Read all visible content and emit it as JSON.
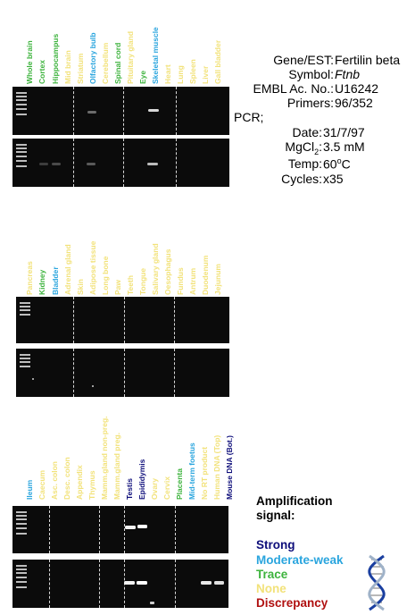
{
  "panels": [
    {
      "labels": [
        {
          "text": "Whole brain",
          "color": "#3db33d"
        },
        {
          "text": "Cortex",
          "color": "#3db33d"
        },
        {
          "text": "Hippocampus",
          "color": "#3db33d"
        },
        {
          "text": "Mid brain",
          "color": "#f2e27a"
        },
        {
          "text": "Striatum",
          "color": "#f2e27a"
        },
        {
          "text": "Olfactory bulb",
          "color": "#2aa5de"
        },
        {
          "text": "Cerebellum",
          "color": "#f2e27a"
        },
        {
          "text": "Spinal cord",
          "color": "#3db33d"
        },
        {
          "text": "Pituitary gland",
          "color": "#f2e27a"
        },
        {
          "text": "Eye",
          "color": "#3db33d"
        },
        {
          "text": "Skeletal muscle",
          "color": "#2aa5de"
        },
        {
          "text": "Heart",
          "color": "#f2e27a"
        },
        {
          "text": "Lung",
          "color": "#f2e27a"
        },
        {
          "text": "Spleen",
          "color": "#f2e27a"
        },
        {
          "text": "Liver",
          "color": "#f2e27a"
        },
        {
          "text": "Gall bladder",
          "color": "#f2e27a"
        }
      ]
    },
    {
      "labels": [
        {
          "text": "Pancreas",
          "color": "#f2e27a"
        },
        {
          "text": "Kidney",
          "color": "#3db33d"
        },
        {
          "text": "Bladder",
          "color": "#2aa5de"
        },
        {
          "text": "Adrenal gland",
          "color": "#f2e27a"
        },
        {
          "text": "Skin",
          "color": "#f2e27a"
        },
        {
          "text": "Adipose tissue",
          "color": "#f2e27a"
        },
        {
          "text": "Long bone",
          "color": "#f2e27a"
        },
        {
          "text": "Paw",
          "color": "#f2e27a"
        },
        {
          "text": "Teeth",
          "color": "#f2e27a"
        },
        {
          "text": "Tongue",
          "color": "#f2e27a"
        },
        {
          "text": "Salivary gland",
          "color": "#f2e27a"
        },
        {
          "text": "Oesophagus",
          "color": "#f2e27a"
        },
        {
          "text": "Fundus",
          "color": "#f2e27a"
        },
        {
          "text": "Antrum",
          "color": "#f2e27a"
        },
        {
          "text": "Duodenum",
          "color": "#f2e27a"
        },
        {
          "text": "Jejunum",
          "color": "#f2e27a"
        }
      ]
    },
    {
      "labels": [
        {
          "text": "Ileum",
          "color": "#2aa5de"
        },
        {
          "text": "Caecum",
          "color": "#f2e27a"
        },
        {
          "text": "Asc. colon",
          "color": "#f2e27a"
        },
        {
          "text": "Desc. colon",
          "color": "#f2e27a"
        },
        {
          "text": "Appendix",
          "color": "#f2e27a"
        },
        {
          "text": "Thymus",
          "color": "#f2e27a"
        },
        {
          "text": "Mamm.gland non-preg.",
          "color": "#f2e27a"
        },
        {
          "text": "Mamm.gland preg.",
          "color": "#f2e27a"
        },
        {
          "text": "Testis",
          "color": "#0d0d7a"
        },
        {
          "text": "Epididymis",
          "color": "#0d0d7a"
        },
        {
          "text": "Ovary",
          "color": "#f2e27a"
        },
        {
          "text": "Cervix",
          "color": "#f2e27a"
        },
        {
          "text": "Placenta",
          "color": "#3db33d"
        },
        {
          "text": "Mid-term foetus",
          "color": "#2aa5de"
        },
        {
          "text": "No RT product",
          "color": "#f2e27a"
        },
        {
          "text": "Human DNA (Top)",
          "color": "#f2e27a"
        },
        {
          "text": "Mouse DNA (Bot.)",
          "color": "#0d0d7a"
        }
      ]
    }
  ],
  "info": {
    "gene_label": "Gene/EST:",
    "gene_value": "Fertilin beta",
    "symbol_label": "Symbol:",
    "symbol_value": "Ftnb",
    "embl_label": "EMBL Ac. No.:",
    "embl_value": "U16242",
    "primers_label": "Primers:",
    "primers_value": "96/352",
    "pcr_label": "PCR;",
    "date_label": "Date:",
    "date_value": "31/7/97",
    "mgcl_label_a": "MgCl",
    "mgcl_label_sub": "2",
    "mgcl_label_b": ":",
    "mgcl_value": "3.5 mM",
    "temp_label": "Temp:",
    "temp_value_a": "60",
    "temp_value_sup": "o",
    "temp_value_b": "C",
    "cycles_label": "Cycles:",
    "cycles_value": "x35"
  },
  "legend": {
    "title_line1": "Amplification",
    "title_line2": "signal:",
    "items": [
      {
        "text": "Strong",
        "color": "#0d0d7a"
      },
      {
        "text": "Moderate-weak",
        "color": "#2aa5de"
      },
      {
        "text": "Trace",
        "color": "#3db33d"
      },
      {
        "text": "None",
        "color": "#f2e27a"
      },
      {
        "text": "Discrepancy",
        "color": "#b01010"
      }
    ]
  }
}
